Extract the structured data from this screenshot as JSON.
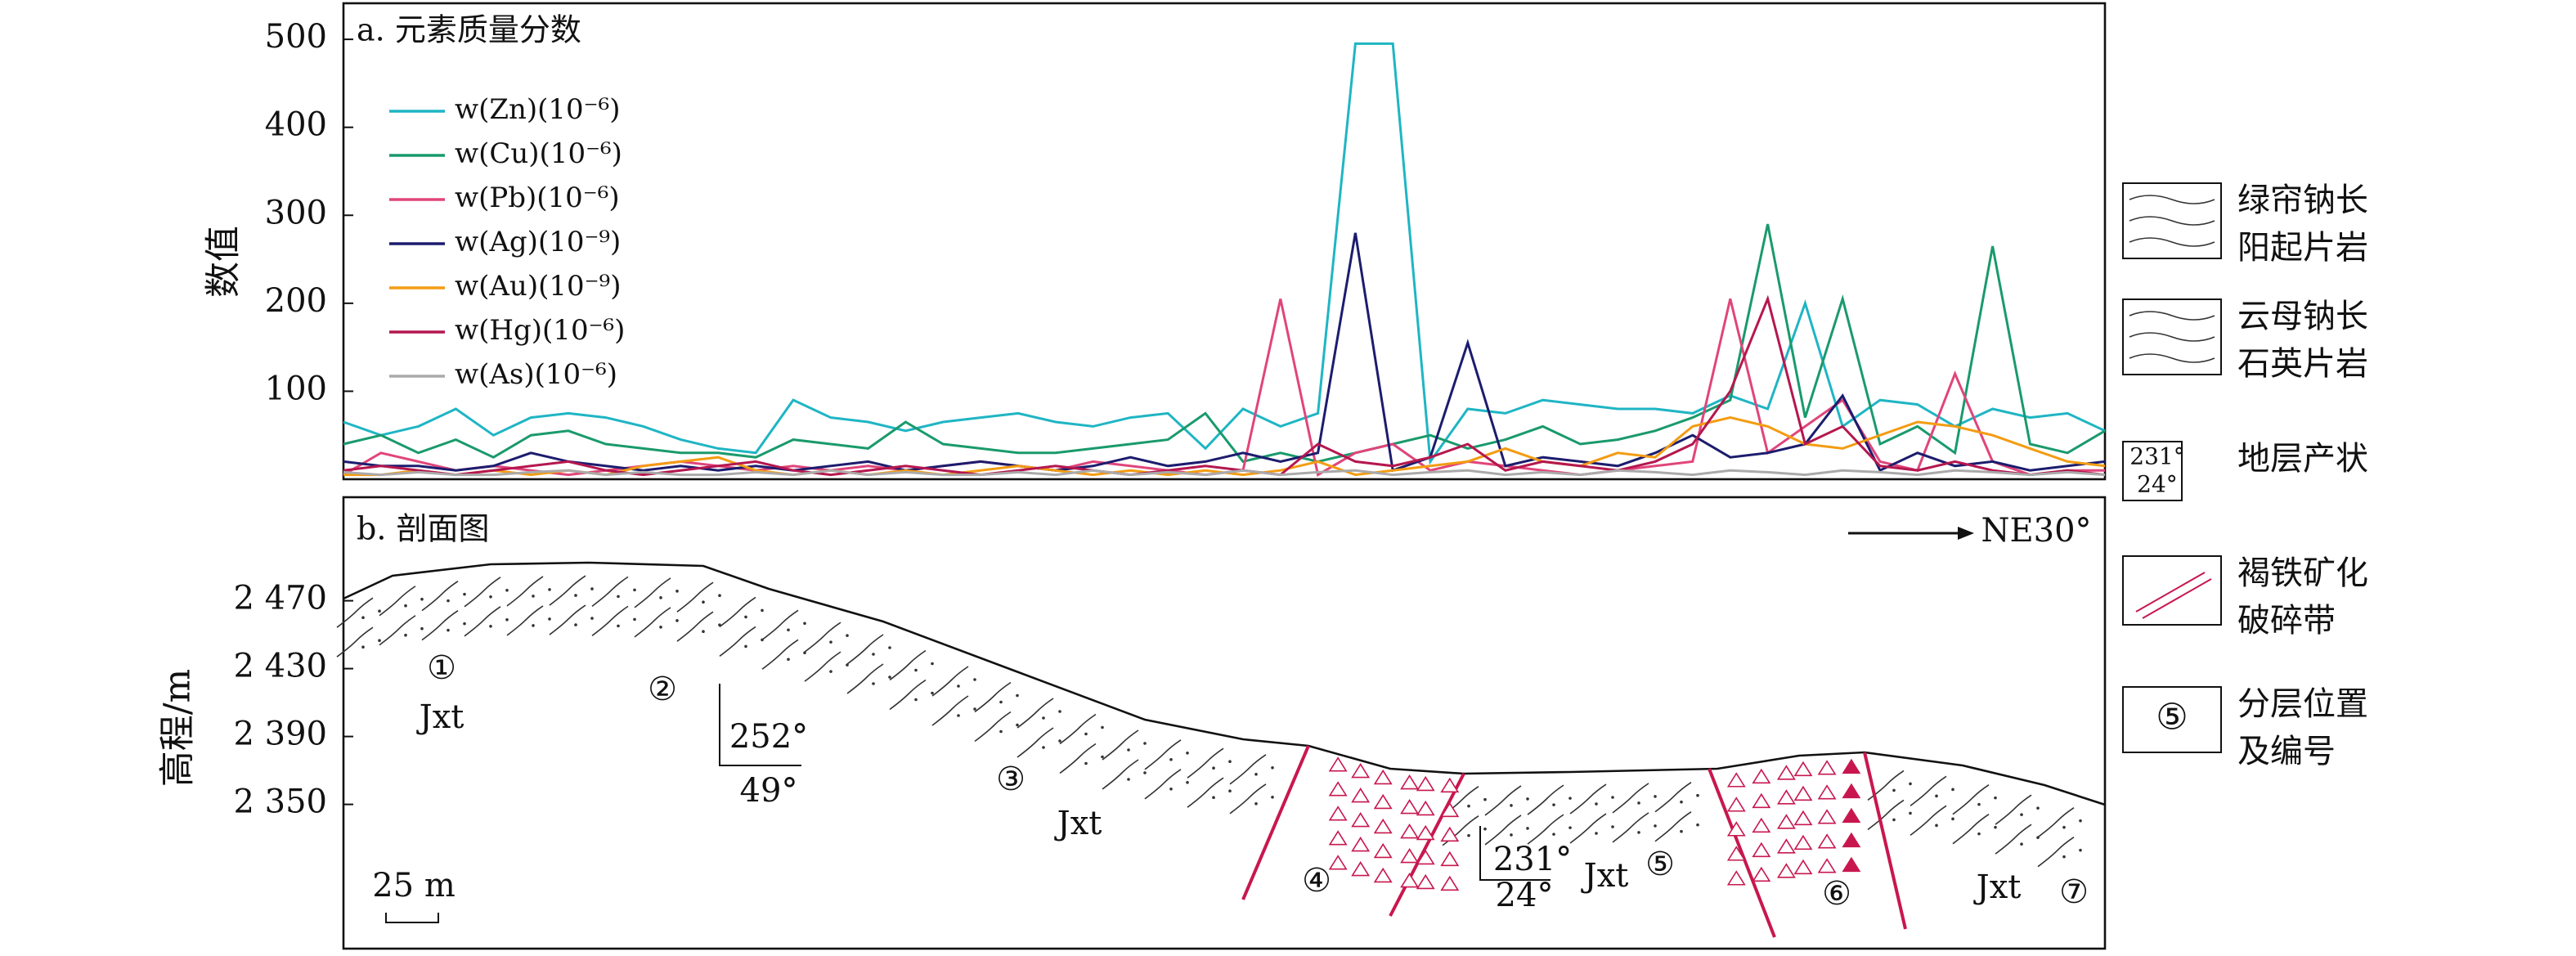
{
  "chart_data": [
    {
      "type": "line",
      "title": "a. 元素质量分数",
      "ylabel": "数值",
      "ylim": [
        0,
        541
      ],
      "yticks": [
        100,
        200,
        300,
        400,
        500
      ],
      "series": [
        {
          "name": "w(Zn)(10⁻⁶)",
          "color": "#1fb5c4",
          "values": [
            65,
            50,
            60,
            80,
            50,
            70,
            75,
            70,
            60,
            45,
            35,
            30,
            90,
            70,
            65,
            55,
            65,
            70,
            75,
            65,
            60,
            70,
            75,
            35,
            80,
            60,
            75,
            495,
            495,
            20,
            80,
            75,
            90,
            85,
            80,
            80,
            75,
            95,
            80,
            200,
            60,
            90,
            85,
            60,
            80,
            70,
            75,
            55
          ]
        },
        {
          "name": "w(Cu)(10⁻⁶)",
          "color": "#1a9a6c",
          "values": [
            40,
            50,
            30,
            45,
            25,
            50,
            55,
            40,
            35,
            30,
            30,
            25,
            45,
            40,
            35,
            65,
            40,
            35,
            30,
            30,
            35,
            40,
            45,
            75,
            20,
            30,
            20,
            30,
            40,
            50,
            35,
            45,
            60,
            40,
            45,
            55,
            70,
            90,
            290,
            70,
            205,
            40,
            60,
            30,
            265,
            40,
            30,
            55
          ]
        },
        {
          "name": "w(Pb)(10⁻⁶)",
          "color": "#e0457b",
          "values": [
            5,
            30,
            20,
            10,
            15,
            10,
            5,
            10,
            15,
            20,
            15,
            10,
            15,
            10,
            15,
            10,
            15,
            20,
            15,
            10,
            20,
            15,
            10,
            5,
            10,
            205,
            5,
            30,
            40,
            10,
            20,
            15,
            10,
            5,
            10,
            15,
            20,
            205,
            30,
            60,
            90,
            20,
            10,
            120,
            20,
            5,
            10,
            10
          ]
        },
        {
          "name": "w(Ag)(10⁻⁹)",
          "color": "#1c1c6e",
          "values": [
            20,
            15,
            15,
            10,
            15,
            30,
            20,
            15,
            10,
            15,
            10,
            15,
            10,
            15,
            20,
            10,
            15,
            20,
            15,
            10,
            15,
            25,
            15,
            20,
            30,
            20,
            30,
            280,
            10,
            25,
            155,
            15,
            25,
            20,
            15,
            30,
            50,
            25,
            30,
            40,
            95,
            10,
            30,
            15,
            20,
            10,
            15,
            20
          ]
        },
        {
          "name": "w(Au)(10⁻⁹)",
          "color": "#f39c12",
          "values": [
            5,
            5,
            10,
            5,
            10,
            5,
            10,
            5,
            15,
            20,
            25,
            10,
            5,
            10,
            5,
            10,
            5,
            10,
            15,
            10,
            5,
            10,
            5,
            10,
            5,
            10,
            20,
            5,
            10,
            15,
            20,
            35,
            20,
            15,
            30,
            25,
            60,
            70,
            60,
            40,
            35,
            50,
            65,
            60,
            50,
            35,
            20,
            15
          ]
        },
        {
          "name": "w(Hg)(10⁻⁶)",
          "color": "#b5174f",
          "values": [
            10,
            15,
            10,
            5,
            10,
            15,
            20,
            10,
            5,
            10,
            15,
            20,
            10,
            5,
            10,
            15,
            10,
            5,
            10,
            15,
            10,
            5,
            10,
            15,
            10,
            5,
            40,
            20,
            15,
            25,
            40,
            10,
            20,
            15,
            10,
            20,
            40,
            100,
            205,
            40,
            60,
            15,
            10,
            20,
            10,
            5,
            10,
            5
          ]
        },
        {
          "name": "w(As)(10⁻⁶)",
          "color": "#aaaaaa",
          "values": [
            8,
            5,
            8,
            5,
            5,
            8,
            10,
            5,
            8,
            5,
            5,
            8,
            5,
            10,
            5,
            8,
            5,
            5,
            8,
            5,
            10,
            5,
            8,
            5,
            10,
            5,
            8,
            10,
            5,
            8,
            10,
            5,
            8,
            5,
            10,
            8,
            5,
            10,
            8,
            5,
            10,
            8,
            5,
            10,
            8,
            5,
            8,
            5
          ]
        }
      ]
    },
    {
      "type": "section",
      "title": "b. 剖面图",
      "ylabel": "高程/m",
      "ylim": [
        2265,
        2531
      ],
      "yticks": [
        {
          "value": 2350,
          "label": "2 350"
        },
        {
          "value": 2390,
          "label": "2 390"
        },
        {
          "value": 2430,
          "label": "2 430"
        },
        {
          "value": 2470,
          "label": "2 470"
        }
      ],
      "annotations": [
        "①",
        "Jxt",
        "②",
        "252°",
        "49°",
        "③",
        "Jxt",
        "④",
        "231°",
        "24°",
        "Jxt",
        "⑤",
        "⑥",
        "Jxt",
        "⑦",
        "25 m",
        "NE30°"
      ]
    }
  ],
  "legend": [
    {
      "lines": [
        "绿帘钠长",
        "阳起片岩"
      ]
    },
    {
      "lines": [
        "云母钠长",
        "石英片岩"
      ]
    },
    {
      "lines": [
        "地层产状"
      ],
      "symbol": [
        "231°",
        "24°"
      ]
    },
    {
      "lines": [
        "褐铁矿化",
        "破碎带"
      ]
    },
    {
      "lines": [
        "分层位置",
        "及编号"
      ],
      "symbol": [
        "⑤"
      ]
    }
  ]
}
